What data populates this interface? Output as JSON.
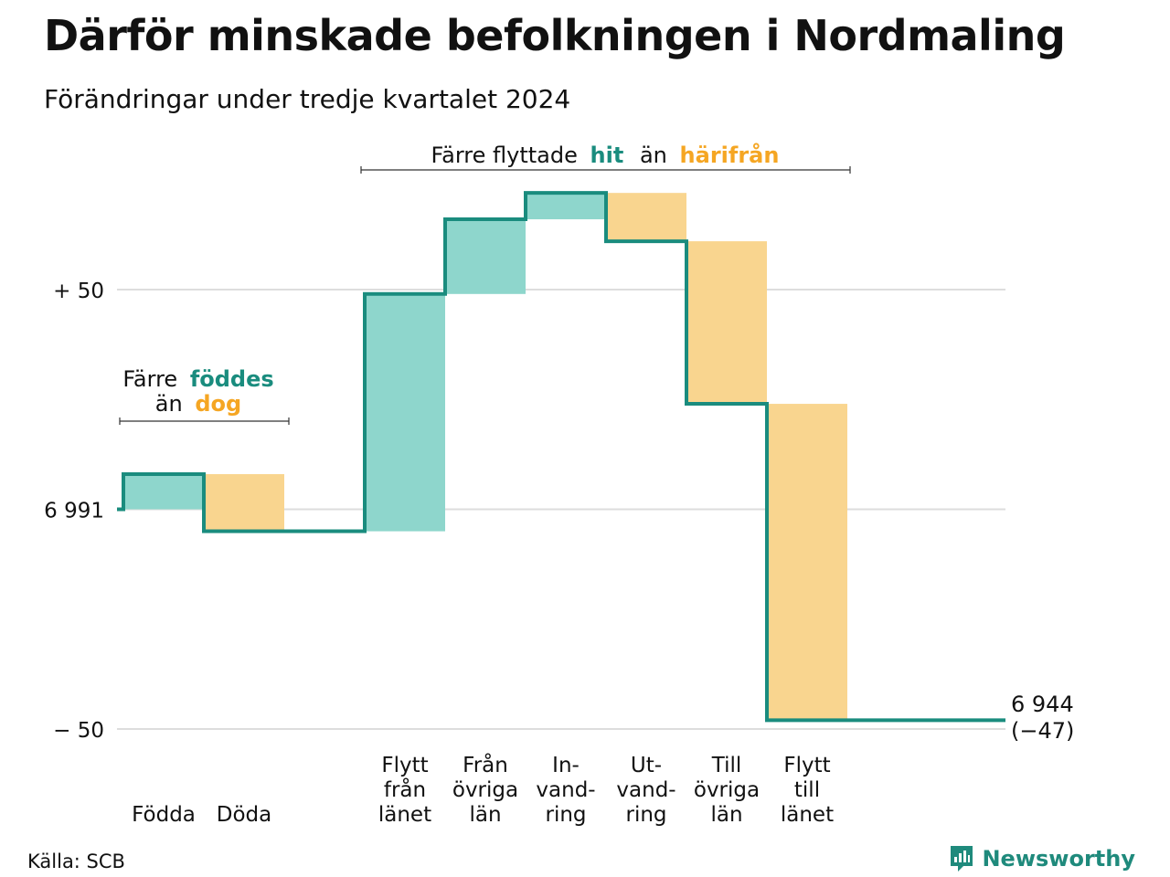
{
  "title": "Därför minskade befolkningen i Nordmaling",
  "subtitle": "Förändringar under tredje kvartalet 2024",
  "source": "Källa: SCB",
  "brand": "Newsworthy",
  "colors": {
    "increase": "#8ed6cc",
    "decrease": "#f9d58f",
    "line": "#1a8c7e",
    "grid": "#dddddd",
    "accent_green": "#1a8c7e",
    "accent_orange": "#f5a623"
  },
  "annotations": {
    "births": {
      "line1_prefix": "Färre",
      "line1_highlight": "föddes",
      "line2_prefix": "än",
      "line2_highlight": "dog"
    },
    "migration": {
      "prefix": "Färre flyttade",
      "highlight1": "hit",
      "middle": "än",
      "highlight2": "härifrån"
    }
  },
  "chart_data": {
    "type": "waterfall",
    "start_value": 6991,
    "end_label_value": "6 944",
    "end_label_change": "(−47)",
    "y_ticks": [
      {
        "value": 50,
        "label": "+ 50"
      },
      {
        "value": 0,
        "label": "6 991"
      },
      {
        "value": -50,
        "label": "− 50"
      }
    ],
    "ylim": [
      -50,
      50
    ],
    "steps": [
      {
        "label": [
          "Födda"
        ],
        "change": 8
      },
      {
        "label": [
          "Döda"
        ],
        "change": -13
      },
      {
        "label": [],
        "change": 0
      },
      {
        "label": [
          "Flytt",
          "från",
          "länet"
        ],
        "change": 54
      },
      {
        "label": [
          "Från",
          "övriga",
          "län"
        ],
        "change": 17
      },
      {
        "label": [
          "In-",
          "vand-",
          "ring"
        ],
        "change": 6
      },
      {
        "label": [
          "Ut-",
          "vand-",
          "ring"
        ],
        "change": -11
      },
      {
        "label": [
          "Till",
          "övriga",
          "län"
        ],
        "change": -37
      },
      {
        "label": [
          "Flytt",
          "till",
          "länet"
        ],
        "change": -72
      }
    ]
  }
}
